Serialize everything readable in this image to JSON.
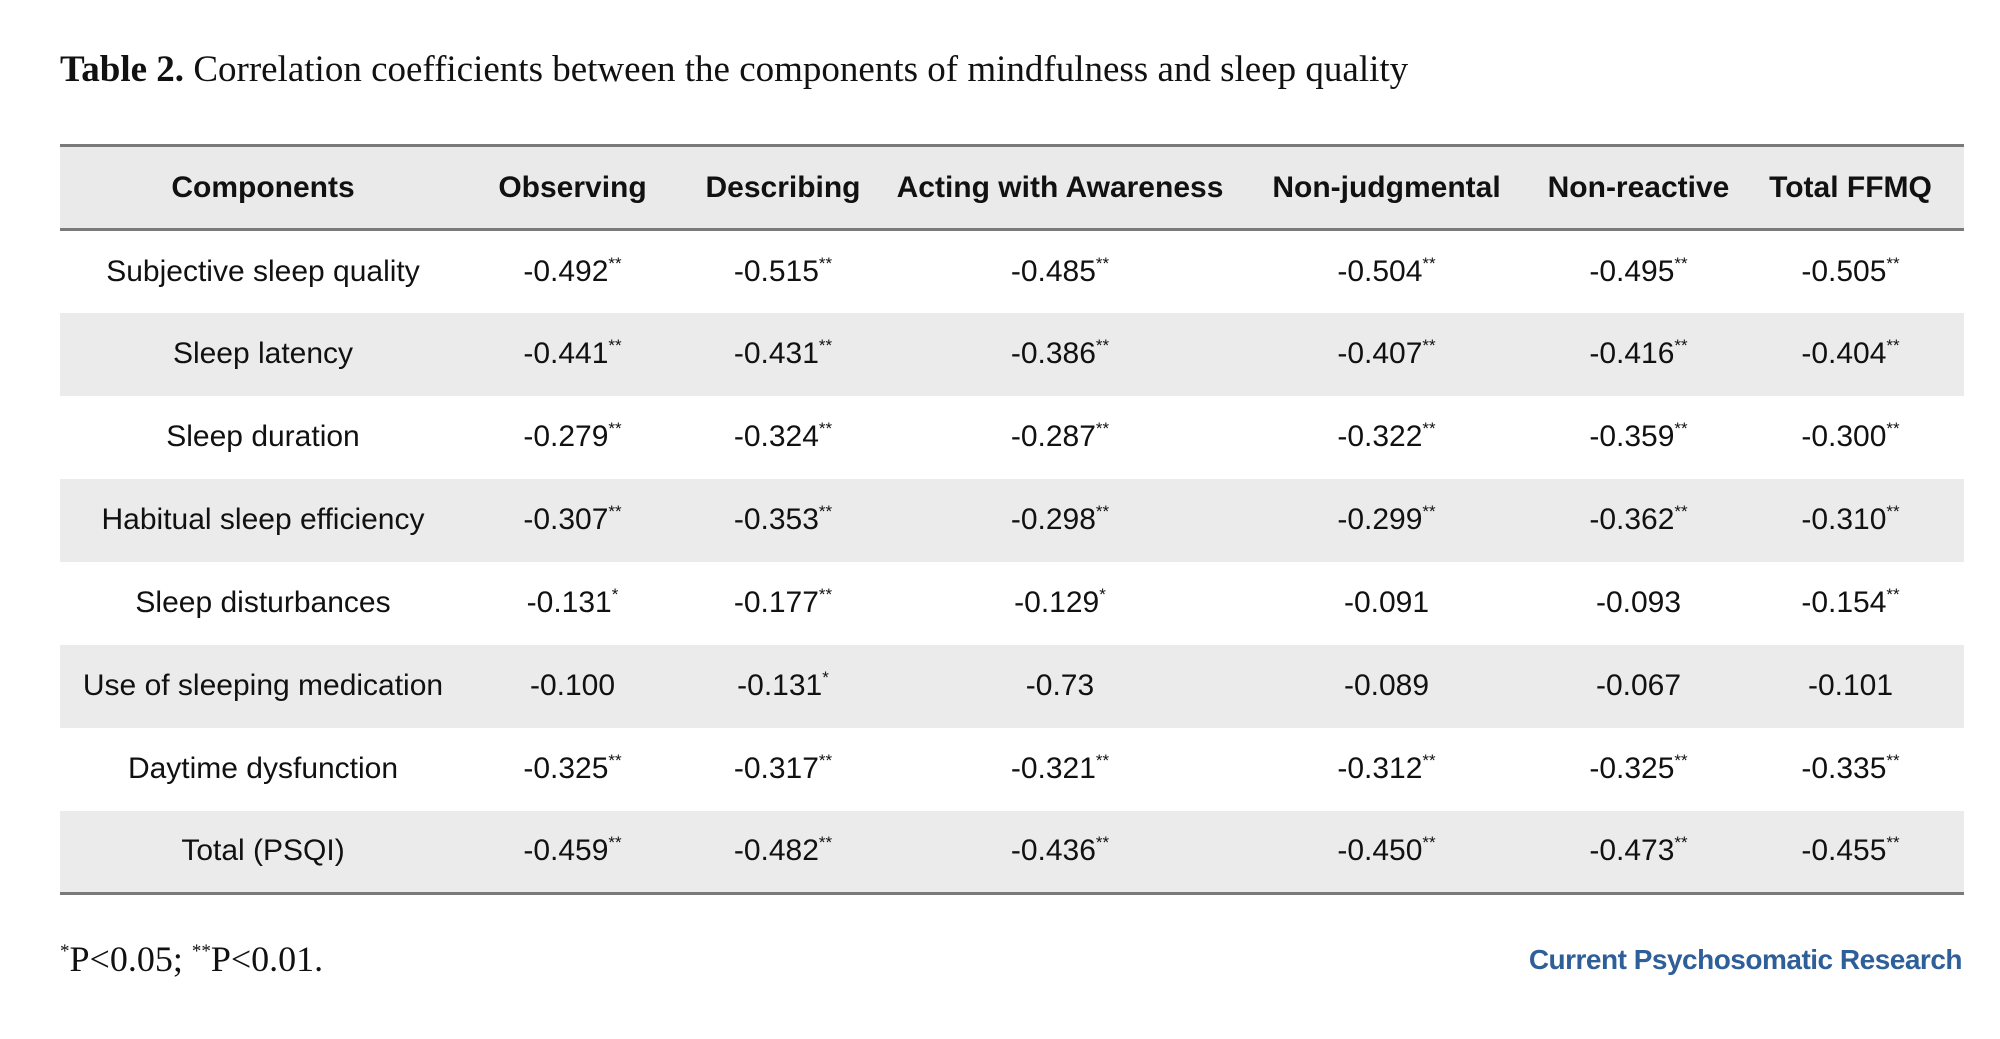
{
  "caption": {
    "label": "Table 2.",
    "text": "Correlation coefficients between the components of mindfulness and sleep quality"
  },
  "table": {
    "headers": [
      "Components",
      "Observing",
      "Describing",
      "Acting with Awareness",
      "Non-judgmental",
      "Non-reactive",
      "Total FFMQ"
    ],
    "rows": [
      {
        "label": "Subjective sleep quality",
        "cells": [
          {
            "v": "-0.492",
            "sig": "**"
          },
          {
            "v": "-0.515",
            "sig": "**"
          },
          {
            "v": "-0.485",
            "sig": "**"
          },
          {
            "v": "-0.504",
            "sig": "**"
          },
          {
            "v": "-0.495",
            "sig": "**"
          },
          {
            "v": "-0.505",
            "sig": "**"
          }
        ]
      },
      {
        "label": "Sleep latency",
        "cells": [
          {
            "v": "-0.441",
            "sig": "**"
          },
          {
            "v": "-0.431",
            "sig": "**"
          },
          {
            "v": "-0.386",
            "sig": "**"
          },
          {
            "v": "-0.407",
            "sig": "**"
          },
          {
            "v": "-0.416",
            "sig": "**"
          },
          {
            "v": "-0.404",
            "sig": "**"
          }
        ]
      },
      {
        "label": "Sleep duration",
        "cells": [
          {
            "v": "-0.279",
            "sig": "**"
          },
          {
            "v": "-0.324",
            "sig": "**"
          },
          {
            "v": "-0.287",
            "sig": "**"
          },
          {
            "v": "-0.322",
            "sig": "**"
          },
          {
            "v": "-0.359",
            "sig": "**"
          },
          {
            "v": "-0.300",
            "sig": "**"
          }
        ]
      },
      {
        "label": "Habitual sleep efficiency",
        "cells": [
          {
            "v": "-0.307",
            "sig": "**"
          },
          {
            "v": "-0.353",
            "sig": "**"
          },
          {
            "v": "-0.298",
            "sig": "**"
          },
          {
            "v": "-0.299",
            "sig": "**"
          },
          {
            "v": "-0.362",
            "sig": "**"
          },
          {
            "v": "-0.310",
            "sig": "**"
          }
        ]
      },
      {
        "label": "Sleep disturbances",
        "cells": [
          {
            "v": "-0.131",
            "sig": "*"
          },
          {
            "v": "-0.177",
            "sig": "**"
          },
          {
            "v": "-0.129",
            "sig": "*"
          },
          {
            "v": "-0.091",
            "sig": ""
          },
          {
            "v": "-0.093",
            "sig": ""
          },
          {
            "v": "-0.154",
            "sig": "**"
          }
        ]
      },
      {
        "label": "Use of sleeping medication",
        "cells": [
          {
            "v": "-0.100",
            "sig": ""
          },
          {
            "v": "-0.131",
            "sig": "*"
          },
          {
            "v": "-0.73",
            "sig": ""
          },
          {
            "v": "-0.089",
            "sig": ""
          },
          {
            "v": "-0.067",
            "sig": ""
          },
          {
            "v": "-0.101",
            "sig": ""
          }
        ]
      },
      {
        "label": "Daytime dysfunction",
        "cells": [
          {
            "v": "-0.325",
            "sig": "**"
          },
          {
            "v": "-0.317",
            "sig": "**"
          },
          {
            "v": "-0.321",
            "sig": "**"
          },
          {
            "v": "-0.312",
            "sig": "**"
          },
          {
            "v": "-0.325",
            "sig": "**"
          },
          {
            "v": "-0.335",
            "sig": "**"
          }
        ]
      },
      {
        "label": "Total (PSQI)",
        "cells": [
          {
            "v": "-0.459",
            "sig": "**"
          },
          {
            "v": "-0.482",
            "sig": "**"
          },
          {
            "v": "-0.436",
            "sig": "**"
          },
          {
            "v": "-0.450",
            "sig": "**"
          },
          {
            "v": "-0.473",
            "sig": "**"
          },
          {
            "v": "-0.455",
            "sig": "**"
          }
        ]
      }
    ]
  },
  "footnote": {
    "sig1_mark": "*",
    "sig1_text": "P<0.05; ",
    "sig2_mark": "**",
    "sig2_text": "P<0.01."
  },
  "journal": "Current Psychosomatic Research",
  "colors": {
    "header_bg": "#eaeaea",
    "stripe_bg": "#ebebeb",
    "rule": "#7a7a7a",
    "journal_blue": "#2e5f99"
  }
}
